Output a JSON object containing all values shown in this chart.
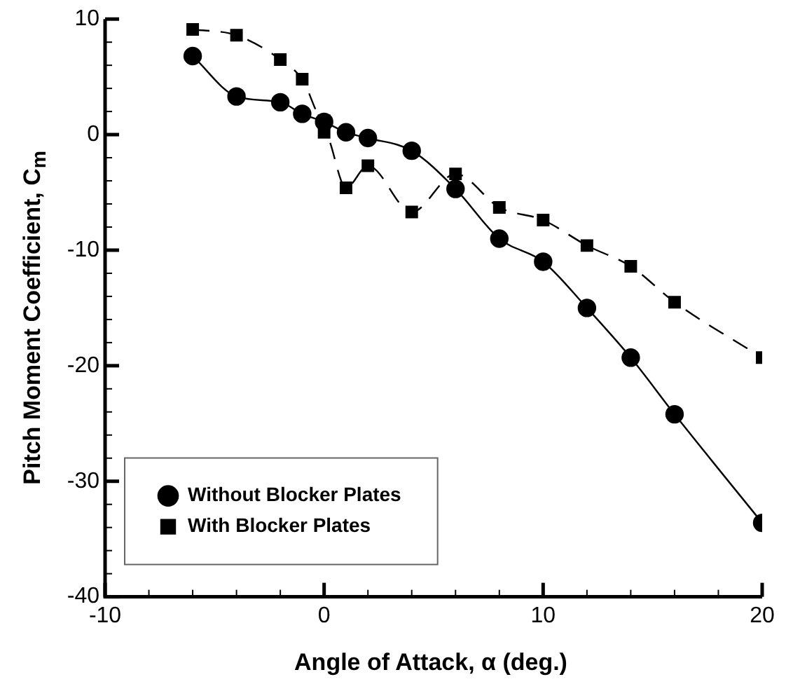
{
  "chart_data": {
    "type": "line",
    "xlabel": "Angle of Attack, α (deg.)",
    "ylabel": "Pitch Moment Coefficient, C$_{m}$",
    "series": [
      {
        "name": "Without Blocker Plates",
        "color": "#000000",
        "marker": "circle",
        "line_style": "solid",
        "x": [
          -6,
          -4,
          -2,
          -1,
          0,
          1,
          2,
          4,
          6,
          8,
          10,
          12,
          14,
          16,
          20
        ],
        "values": [
          6.8,
          3.3,
          2.8,
          1.8,
          1.1,
          0.2,
          -0.3,
          -1.4,
          -4.7,
          -9.0,
          -11.0,
          -15.0,
          -19.3,
          -24.2,
          -33.6
        ]
      },
      {
        "name": "With Blocker Plates",
        "color": "#000000",
        "marker": "square",
        "line_style": "dashed",
        "x": [
          -6,
          -4,
          -2,
          -1,
          0,
          0,
          1,
          2,
          4,
          6,
          8,
          10,
          12,
          14,
          16,
          20
        ],
        "values": [
          9.1,
          8.6,
          6.5,
          4.8,
          1.2,
          0.2,
          -4.6,
          -2.7,
          -6.7,
          -3.4,
          -6.3,
          -7.4,
          -9.6,
          -11.4,
          -14.5,
          -19.3
        ]
      }
    ],
    "xlim": [
      -10,
      20
    ],
    "xticks": [
      -10,
      {
        "value": -8,
        "label": null
      },
      {
        "value": -6,
        "label": null
      },
      {
        "value": -4,
        "label": null
      },
      {
        "value": -2,
        "label": null
      },
      0,
      {
        "value": 2,
        "label": null
      },
      {
        "value": 4,
        "label": null
      },
      {
        "value": 6,
        "label": null
      },
      {
        "value": 8,
        "label": null
      },
      10,
      {
        "value": 12,
        "label": null
      },
      {
        "value": 14,
        "label": null
      },
      {
        "value": 16,
        "label": null
      },
      {
        "value": 18,
        "label": null
      },
      20
    ],
    "ylim": [
      -40,
      10
    ],
    "yticks": [
      -40,
      {
        "value": -38,
        "label": null
      },
      {
        "value": -36,
        "label": null
      },
      {
        "value": -34,
        "label": null
      },
      {
        "value": -32,
        "label": null
      },
      -30,
      {
        "value": -28,
        "label": null
      },
      {
        "value": -26,
        "label": null
      },
      {
        "value": -24,
        "label": null
      },
      {
        "value": -22,
        "label": null
      },
      -20,
      {
        "value": -18,
        "label": null
      },
      {
        "value": -16,
        "label": null
      },
      {
        "value": -14,
        "label": null
      },
      {
        "value": -12,
        "label": null
      },
      -10,
      {
        "value": -8,
        "label": null
      },
      {
        "value": -6,
        "label": null
      },
      {
        "value": -4,
        "label": null
      },
      {
        "value": -2,
        "label": null
      },
      0,
      {
        "value": 2,
        "label": null
      },
      {
        "value": 4,
        "label": null
      },
      {
        "value": 6,
        "label": null
      },
      {
        "value": 8,
        "label": null
      },
      10
    ],
    "legend": "bottom left"
  }
}
